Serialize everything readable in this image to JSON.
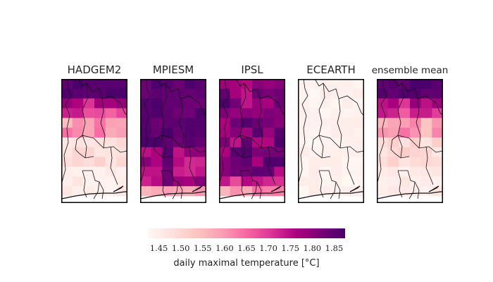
{
  "panels": [
    {
      "title": "HADGEM2",
      "pattern": "north-high"
    },
    {
      "title": "MPIESM",
      "pattern": "mostly-high"
    },
    {
      "title": "IPSL",
      "pattern": "high-mixed"
    },
    {
      "title": "ECEARTH",
      "pattern": "low"
    },
    {
      "title": "ensemble mean",
      "pattern": "north-high"
    }
  ],
  "colorbar": {
    "min": 1.425,
    "max": 1.875,
    "ticks": [
      "1.45",
      "1.50",
      "1.55",
      "1.60",
      "1.65",
      "1.70",
      "1.75",
      "1.80",
      "1.85"
    ],
    "colormap": "RdPu",
    "colors": [
      "#fff7f3",
      "#fde0dd",
      "#fcc5c0",
      "#fa9fb5",
      "#f768a1",
      "#dd3497",
      "#ae017e",
      "#7a0177",
      "#49006a"
    ],
    "label": "daily maximal temperature [°C]"
  }
}
